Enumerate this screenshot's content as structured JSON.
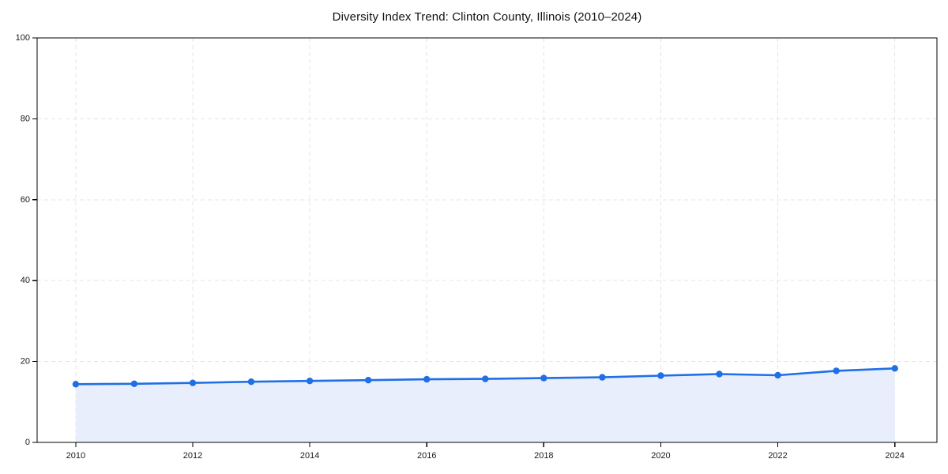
{
  "page": {
    "background": "#ffffff"
  },
  "chart_data": {
    "type": "line",
    "title": "Diversity Index Trend: Clinton County, Illinois (2010–2024)",
    "x": [
      2010,
      2011,
      2012,
      2013,
      2014,
      2015,
      2016,
      2017,
      2018,
      2019,
      2020,
      2021,
      2022,
      2023,
      2024
    ],
    "series": [
      {
        "name": "Diversity Index",
        "values": [
          14.4,
          14.5,
          14.7,
          15.0,
          15.2,
          15.4,
          15.6,
          15.7,
          15.9,
          16.1,
          16.5,
          16.9,
          16.6,
          17.7,
          18.3
        ]
      }
    ],
    "xlabel": "",
    "ylabel": "",
    "ylim": [
      0,
      100
    ],
    "yticks": [
      0,
      20,
      40,
      60,
      80,
      100
    ],
    "xticks": [
      2010,
      2012,
      2014,
      2016,
      2018,
      2020,
      2022,
      2024
    ],
    "grid": "dashed",
    "legend": "none",
    "area_fill": true,
    "markers": true,
    "colors": {
      "line": "#1f6fe6",
      "marker": "#1f6fe6",
      "fill": "#e8eefb",
      "grid": "#e4e4e4",
      "axis": "#000000",
      "tick_text": "#1a1a1a",
      "title_text": "#111111"
    }
  }
}
